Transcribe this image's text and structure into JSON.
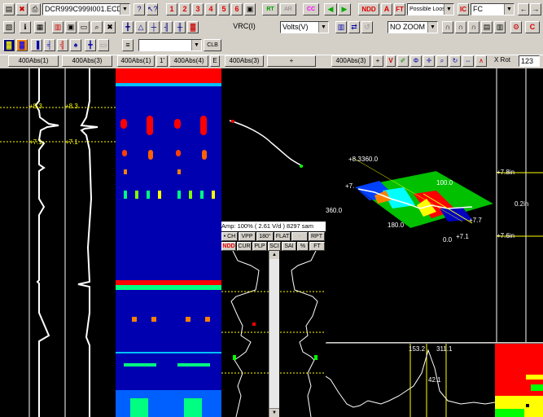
{
  "toolbar1": {
    "file_name": "DCR999C999I001.ECD",
    "help_label": "?",
    "channel_tabs": [
      "1",
      "2",
      "3",
      "4",
      "5",
      "6"
    ],
    "rt_label": "RT",
    "ar_label": "AR",
    "cc_label": "CC",
    "ndd_label": "NDD",
    "a_label": "A",
    "ft_label": "FT",
    "flaw_type": "Possible Loose",
    "ic_label": "IC",
    "ic_value": "FC"
  },
  "toolbar2": {
    "vrc_label": "VRC(I)",
    "volts_value": "Volts(V)",
    "zoom_value": "NO ZOOM",
    "clb_label": "CLB",
    "c_label": "C"
  },
  "tabs": [
    "400Abs(1)",
    "400Abs(3)",
    "400Abs(1)",
    "1'",
    "400Abs(4)",
    "E",
    "400Abs(3)",
    "+",
    "400Abs(3)",
    "+",
    "V",
    "X Rot",
    "123"
  ],
  "strip_chart": {
    "upper_value": "+8.3",
    "lower_value": "+7.1"
  },
  "lissajous": {
    "status": "Amp: 100% ( 2.61 V/d ) 8297 sam",
    "buttons_row1": [
      "• CH",
      "VPP",
      "180°",
      "FLAT",
      "-",
      "RPT"
    ],
    "buttons_row2": [
      "NDD",
      "CUR",
      "PLP",
      "SCI",
      "SAI",
      "%",
      "FT"
    ]
  },
  "plot3d": {
    "label_tl": "+8.3",
    "label_tl2": "360.0",
    "label_left": "+7.",
    "label_mid": "100.0",
    "label_leftaxis": "360.0",
    "label_bottom": "180.0",
    "label_right": "+7.7",
    "label_br": "0.0",
    "label_br2": "+7.1"
  },
  "axial": {
    "top": "+7.8in",
    "mid": "0.2in",
    "bottom": "+7.6in"
  },
  "profile": {
    "left": "153.2",
    "right": "311.1",
    "bottom": "42.1"
  },
  "colors": {
    "background": "#000000",
    "toolbar": "#d4d0c8",
    "trace": "#ffffff",
    "cursor": "#ffff00"
  }
}
